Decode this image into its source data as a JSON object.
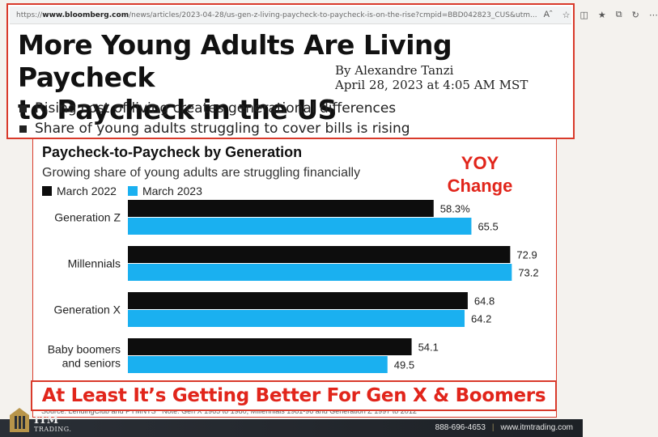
{
  "browser": {
    "url_prefix": "https://",
    "url_domain": "www.bloomberg.com",
    "url_path": "/news/articles/2023-04-28/us-gen-z-living-paycheck-to-paycheck-is-on-the-rise?cmpid=BBD042823_CUS&utm..."
  },
  "article": {
    "headline_line1": "More Young Adults Are Living Paycheck",
    "headline_line2": "to Paycheck in the US",
    "author": "By Alexandre Tanzi",
    "date": "April 28, 2023 at 4:05 AM MST",
    "bullets": [
      "Rising cost of living creates generational differences",
      "Share of young adults struggling to cover bills is rising"
    ]
  },
  "annotation": {
    "yoy_line1": "YOY",
    "yoy_line2": "Change",
    "banner": "At Least It’s Getting Better For Gen X & Boomers"
  },
  "footer": {
    "phone": "888-696-4653",
    "website": "www.itmtrading.com",
    "logo_line1": "ITM",
    "logo_line2": "TRADING."
  },
  "colors": {
    "march_2022": "#0d0d0d",
    "march_2023": "#1ab0f0",
    "accent_red": "#e1251b"
  },
  "chart_data": {
    "type": "bar",
    "orientation": "horizontal",
    "title": "Paycheck-to-Paycheck by Generation",
    "subtitle": "Growing share of young adults are struggling financially",
    "categories": [
      "Generation Z",
      "Millennials",
      "Generation X",
      "Baby boomers and seniors"
    ],
    "series": [
      {
        "name": "March 2022",
        "values": [
          58.3,
          72.9,
          64.8,
          54.1
        ],
        "labels": [
          "58.3%",
          "72.9",
          "64.8",
          "54.1"
        ]
      },
      {
        "name": "March 2023",
        "values": [
          65.5,
          73.2,
          64.2,
          49.5
        ],
        "labels": [
          "65.5",
          "73.2",
          "64.2",
          "49.5"
        ]
      }
    ],
    "xlim": [
      0,
      80
    ],
    "grid": false,
    "legend_position": "top-left",
    "source_note": "Source: LendingClub and PYMNTS",
    "footnote": "Note: Gen X 1965 to 1980, Millennials 1981-96 and Generation Z 1997 to 2012"
  }
}
